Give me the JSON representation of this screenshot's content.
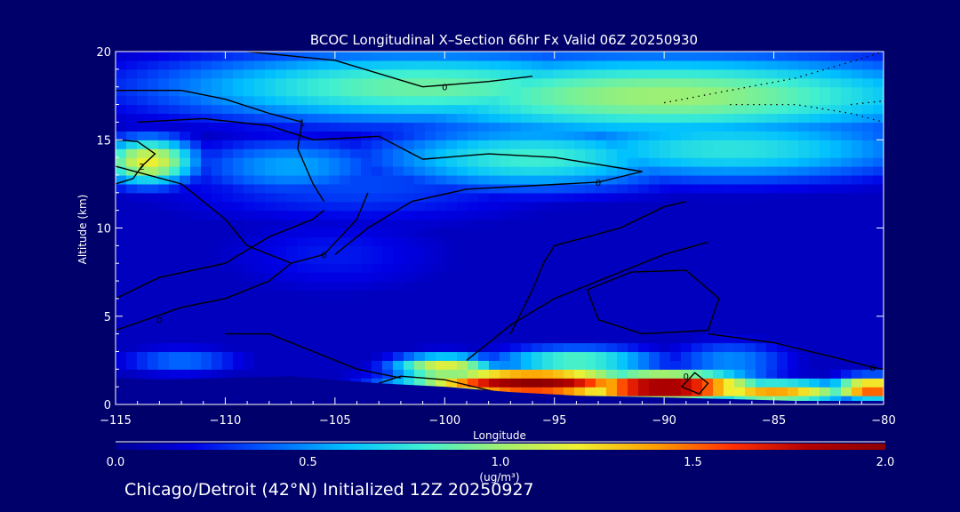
{
  "chart_data": {
    "type": "heatmap",
    "title": "BCOC Longitudinal X–Section 66hr  Fx Valid 06Z 20250930",
    "xlabel": "Longitude",
    "ylabel": "Altitude (km)",
    "xlim": [
      -115,
      -80
    ],
    "ylim": [
      0,
      20
    ],
    "x_ticks": [
      -115,
      -110,
      -105,
      -100,
      -95,
      -90,
      -85,
      -80
    ],
    "x_tick_labels": [
      "−115",
      "−110",
      "−105",
      "−100",
      "−95",
      "−90",
      "−85",
      "−80"
    ],
    "y_ticks": [
      0,
      5,
      10,
      15,
      20
    ],
    "colorbar": {
      "min": 0.0,
      "max": 2.0,
      "ticks": [
        0.0,
        0.5,
        1.0,
        1.5,
        2.0
      ],
      "tick_labels": [
        "0.0",
        "0.5",
        "1.0",
        "1.5",
        "2.0"
      ],
      "label": "(ug/m³)",
      "colors": [
        "#000096",
        "#0000e6",
        "#0060ff",
        "#00c0ff",
        "#40f0d0",
        "#a0f070",
        "#f0f030",
        "#ffa000",
        "#ff3000",
        "#b40000",
        "#8c0000"
      ]
    },
    "field": {
      "background_value": 0.1,
      "blobs": [
        {
          "x": -101,
          "y": 18.0,
          "value": 0.9,
          "sx": 13,
          "sy": 2.2
        },
        {
          "x": -90,
          "y": 17.5,
          "value": 1.0,
          "sx": 15,
          "sy": 2.5
        },
        {
          "x": -113.5,
          "y": 13.8,
          "value": 1.2,
          "sx": 2.3,
          "sy": 1.4
        },
        {
          "x": -107,
          "y": 13.5,
          "value": 0.55,
          "sx": 5,
          "sy": 1.8
        },
        {
          "x": -96,
          "y": 14.0,
          "value": 0.8,
          "sx": 8,
          "sy": 2.0
        },
        {
          "x": -87,
          "y": 14.5,
          "value": 0.75,
          "sx": 10,
          "sy": 2.0
        },
        {
          "x": -104,
          "y": 12.5,
          "value": 0.35,
          "sx": 10,
          "sy": 2.5
        },
        {
          "x": -105,
          "y": 8.5,
          "value": 0.25,
          "sx": 6,
          "sy": 2.5
        },
        {
          "x": -100,
          "y": 2.1,
          "value": 1.2,
          "sx": 2.5,
          "sy": 0.8
        },
        {
          "x": -96,
          "y": 1.2,
          "value": 2.0,
          "sx": 5.5,
          "sy": 0.9
        },
        {
          "x": -90,
          "y": 1.0,
          "value": 2.0,
          "sx": 4.5,
          "sy": 0.9
        },
        {
          "x": -94,
          "y": 2.5,
          "value": 0.9,
          "sx": 4,
          "sy": 0.8
        },
        {
          "x": -85,
          "y": 0.7,
          "value": 1.4,
          "sx": 4,
          "sy": 0.7
        },
        {
          "x": -80.5,
          "y": 0.9,
          "value": 1.6,
          "sx": 2,
          "sy": 0.7
        },
        {
          "x": -87,
          "y": 2.5,
          "value": 0.5,
          "sx": 3,
          "sy": 1.2
        },
        {
          "x": -112,
          "y": 2.5,
          "value": 0.45,
          "sx": 3,
          "sy": 0.8
        }
      ]
    },
    "contours": [
      {
        "label": "0",
        "label_at": [
          -100,
          18.0
        ],
        "points": [
          [
            -109,
            20
          ],
          [
            -105,
            19.5
          ],
          [
            -101,
            18.0
          ],
          [
            -98,
            18.3
          ],
          [
            -96,
            18.6
          ]
        ]
      },
      {
        "label": "1",
        "label_at": [
          -106.5,
          16.0
        ],
        "points": [
          [
            -115,
            17.8
          ],
          [
            -112,
            17.8
          ],
          [
            -110,
            17.3
          ],
          [
            -108,
            16.5
          ],
          [
            -106.5,
            16.0
          ],
          [
            -106.7,
            14.5
          ],
          [
            -106.0,
            12.5
          ],
          [
            -105.5,
            11.5
          ]
        ]
      },
      {
        "label": "2",
        "label_at": [
          -113.8,
          13.5
        ],
        "points": [
          [
            -115,
            15.0
          ],
          [
            -114,
            14.9
          ],
          [
            -113.2,
            14.2
          ],
          [
            -113.8,
            13.5
          ],
          [
            -114.2,
            12.8
          ],
          [
            -115,
            12.5
          ]
        ]
      },
      {
        "label": "0",
        "label_at": [
          -93,
          12.6
        ],
        "points": [
          [
            -114,
            16.0
          ],
          [
            -111,
            16.2
          ],
          [
            -108,
            15.8
          ],
          [
            -106,
            15.0
          ],
          [
            -103,
            15.2
          ],
          [
            -101,
            13.9
          ],
          [
            -98,
            14.2
          ],
          [
            -95,
            14.0
          ],
          [
            -91,
            13.2
          ],
          [
            -93,
            12.6
          ],
          [
            -99,
            12.2
          ],
          [
            -101.5,
            11.5
          ],
          [
            -103.5,
            10.0
          ],
          [
            -105,
            8.5
          ]
        ]
      },
      {
        "label": "0",
        "label_at": [
          -105.5,
          8.5
        ],
        "points": [
          [
            -115,
            13.5
          ],
          [
            -112,
            12.5
          ],
          [
            -110,
            10.5
          ],
          [
            -109,
            9.0
          ],
          [
            -107,
            8.0
          ],
          [
            -105.5,
            8.5
          ],
          [
            -104,
            10.5
          ],
          [
            -103.5,
            12.0
          ]
        ]
      },
      {
        "label": "0",
        "label_at": [
          -113,
          4.8
        ],
        "points": [
          [
            -115,
            6.0
          ],
          [
            -113,
            7.2
          ],
          [
            -110,
            8.0
          ],
          [
            -108,
            9.5
          ],
          [
            -106,
            10.5
          ],
          [
            -105.5,
            11.0
          ]
        ]
      },
      {
        "label": "",
        "label_at": null,
        "points": [
          [
            -115,
            4.2
          ],
          [
            -112,
            5.5
          ],
          [
            -110,
            6.0
          ],
          [
            -108,
            7.0
          ],
          [
            -107,
            8.0
          ]
        ]
      },
      {
        "label": "",
        "label_at": null,
        "points": [
          [
            -99,
            2.5
          ],
          [
            -97,
            4.5
          ],
          [
            -95,
            6.0
          ],
          [
            -92,
            7.5
          ],
          [
            -90,
            8.5
          ],
          [
            -88,
            9.2
          ]
        ]
      },
      {
        "label": "",
        "label_at": null,
        "points": [
          [
            -97,
            4.0
          ],
          [
            -96,
            6.5
          ],
          [
            -95.5,
            8.0
          ],
          [
            -95,
            9.0
          ],
          [
            -92,
            10.0
          ],
          [
            -90,
            11.2
          ],
          [
            -89,
            11.5
          ]
        ]
      },
      {
        "label": "",
        "label_at": null,
        "points": [
          [
            -91.5,
            7.5
          ],
          [
            -89,
            7.6
          ],
          [
            -87.5,
            6.0
          ],
          [
            -88,
            4.2
          ],
          [
            -91,
            4.0
          ],
          [
            -93,
            4.8
          ],
          [
            -93.5,
            6.5
          ],
          [
            -91.5,
            7.5
          ]
        ]
      },
      {
        "label": "",
        "label_at": null,
        "points": [
          [
            -110,
            4.0
          ],
          [
            -108,
            4.0
          ],
          [
            -106,
            3.0
          ],
          [
            -104,
            2.0
          ],
          [
            -102,
            1.5
          ]
        ]
      },
      {
        "label": "0",
        "label_at": [
          -98,
          0.4
        ],
        "points": [
          [
            -103,
            1.2
          ],
          [
            -102,
            1.6
          ],
          [
            -100,
            1.4
          ],
          [
            -98,
            0.8
          ],
          [
            -97,
            0.5
          ]
        ]
      },
      {
        "label": "0",
        "label_at": [
          -89,
          1.6
        ],
        "points": [
          [
            -89.2,
            1.0
          ],
          [
            -88.6,
            1.8
          ],
          [
            -88.0,
            1.2
          ],
          [
            -88.4,
            0.6
          ],
          [
            -89.2,
            1.0
          ]
        ]
      },
      {
        "label": "0",
        "label_at": [
          -80.5,
          2.1
        ],
        "points": [
          [
            -88,
            4.0
          ],
          [
            -85,
            3.5
          ],
          [
            -82,
            2.6
          ],
          [
            -80.5,
            2.1
          ],
          [
            -80,
            2.0
          ]
        ]
      }
    ],
    "dotted_contours": [
      {
        "points": [
          [
            -90,
            17.1
          ],
          [
            -87,
            17.8
          ],
          [
            -84,
            18.5
          ],
          [
            -81,
            19.6
          ],
          [
            -80,
            20
          ]
        ]
      },
      {
        "points": [
          [
            -87,
            17.0
          ],
          [
            -84,
            17.0
          ],
          [
            -81.5,
            16.5
          ],
          [
            -80,
            16.0
          ]
        ]
      },
      {
        "points": [
          [
            -81.5,
            17.0
          ],
          [
            -80,
            17.2
          ]
        ]
      }
    ],
    "terrain": [
      [
        -115,
        1.5
      ],
      [
        -113,
        1.4
      ],
      [
        -110,
        1.5
      ],
      [
        -107,
        1.6
      ],
      [
        -105,
        1.4
      ],
      [
        -103,
        1.2
      ],
      [
        -100,
        1.0
      ],
      [
        -97,
        0.7
      ],
      [
        -94,
        0.5
      ],
      [
        -90,
        0.4
      ],
      [
        -87,
        0.3
      ],
      [
        -84,
        0.2
      ],
      [
        -80,
        0.2
      ]
    ],
    "footer": "Chicago/Detroit (42°N) Initialized 12Z 20250927"
  }
}
